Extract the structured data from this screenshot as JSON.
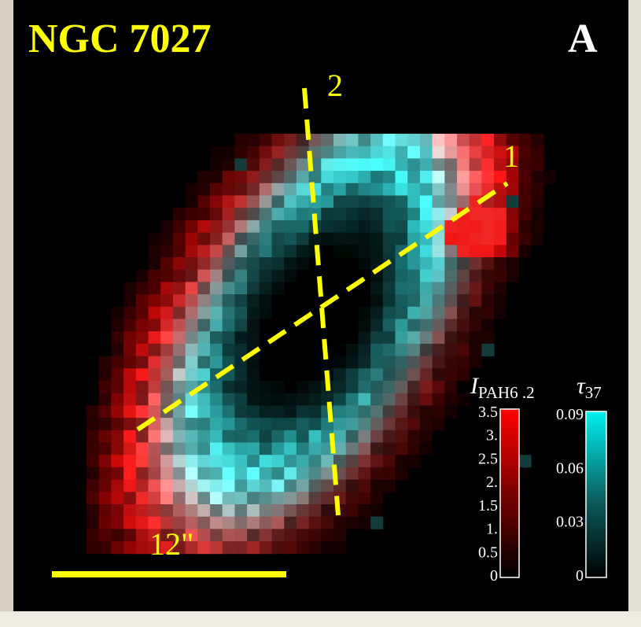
{
  "panel": {
    "object_name": "NGC 7027",
    "panel_letter": "A"
  },
  "cuts": [
    {
      "label": "1"
    },
    {
      "label": "2"
    }
  ],
  "scale_bar": {
    "label": "12\""
  },
  "colorbar_pah": {
    "symbol": "I",
    "subscript": "PAH6 .2",
    "tick_labels": [
      "3.5",
      "3.",
      "2.5",
      "2.",
      "1.5",
      "1.",
      "0.5",
      "0"
    ],
    "tick_values": [
      3.5,
      3.0,
      2.5,
      2.0,
      1.5,
      1.0,
      0.5,
      0
    ],
    "range": [
      0,
      3.5
    ],
    "color_top": "#ff0000",
    "color_bottom": "#000000"
  },
  "colorbar_tau": {
    "symbol": "τ",
    "subscript": "37",
    "tick_labels": [
      "0.09",
      "0.06",
      "0.03",
      "0"
    ],
    "tick_values": [
      0.09,
      0.06,
      0.03,
      0
    ],
    "range": [
      0,
      0.09
    ],
    "color_top": "#00f0f0",
    "color_bottom": "#000000"
  },
  "colors": {
    "annotation": "#ffff00",
    "background": "#000000"
  }
}
